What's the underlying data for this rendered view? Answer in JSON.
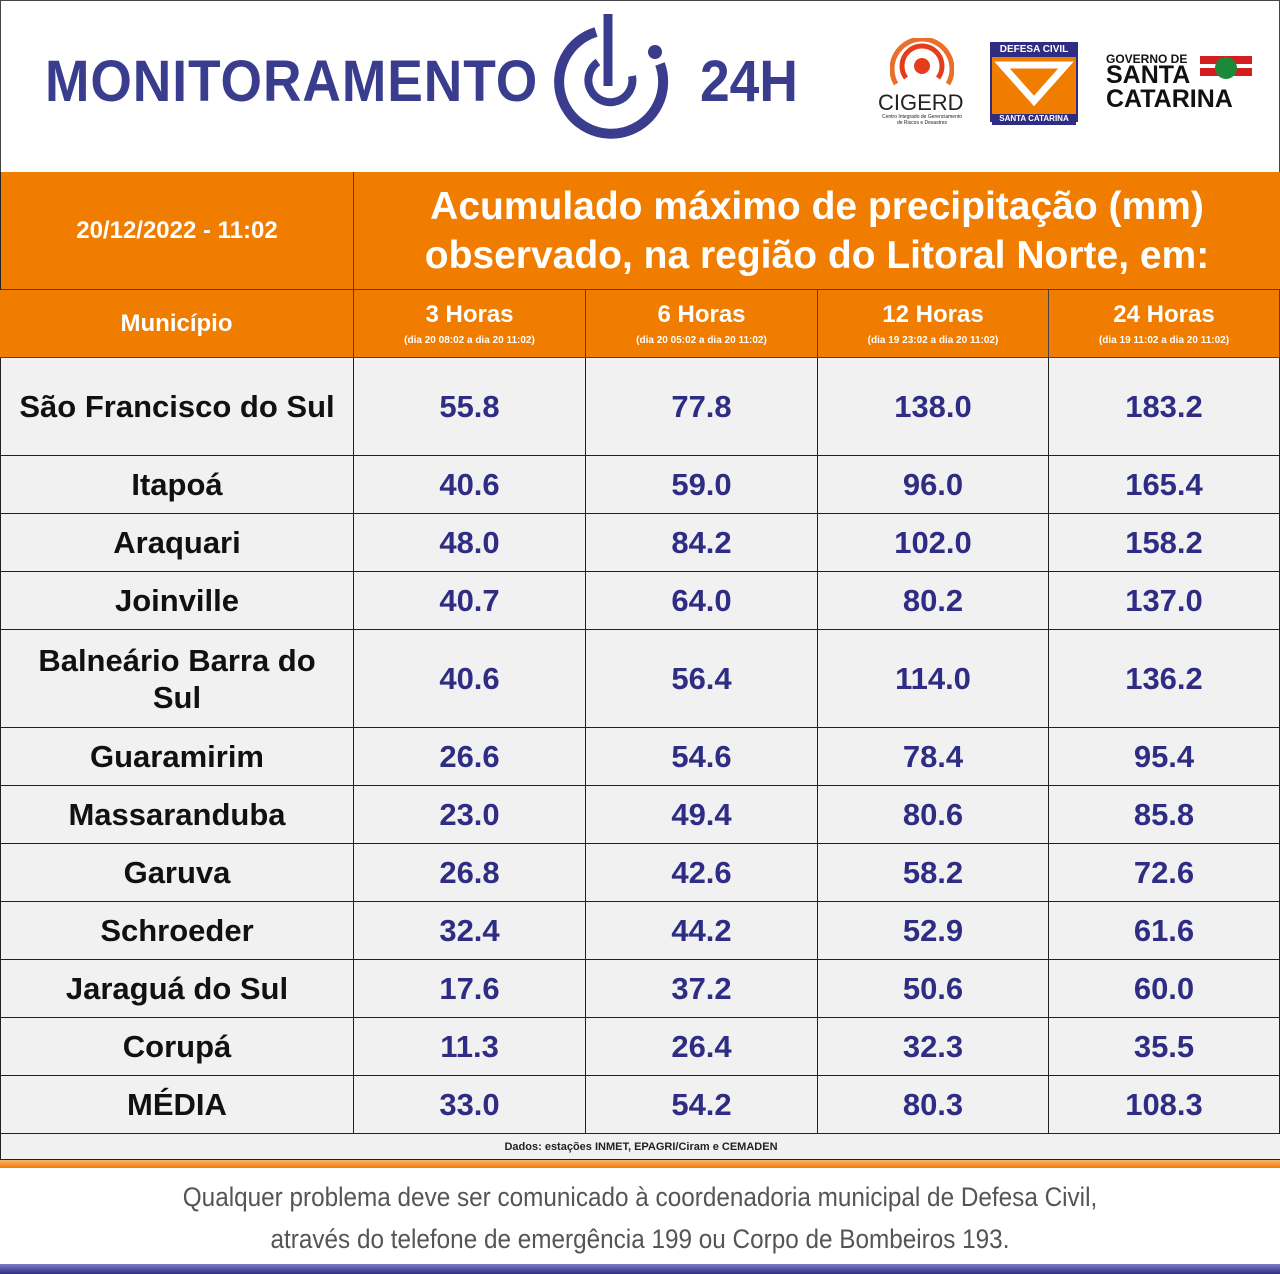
{
  "header": {
    "title": "MONITORAMENTO",
    "title_suffix": "24H",
    "cigerd": "CIGERD",
    "cigerd_sub": "Centro Integrado de Gerenciamento de Riscos e Desastres",
    "defesa_top": "DEFESA CIVIL",
    "defesa_bottom": "SANTA CATARINA",
    "gov_top": "GOVERNO DE",
    "gov_line1": "SANTA",
    "gov_line2": "CATARINA"
  },
  "table": {
    "datetime": "20/12/2022 - 11:02",
    "title_lines": [
      "Acumulado máximo de precipitação (mm)",
      "observado, na região do Litoral Norte, em:"
    ],
    "columns": [
      {
        "label": "Município"
      },
      {
        "label": "3 Horas",
        "sub": "(dia 20 08:02 a dia 20 11:02)"
      },
      {
        "label": "6 Horas",
        "sub": "(dia 20 05:02 a dia 20 11:02)"
      },
      {
        "label": "12 Horas",
        "sub": "(dia 19 23:02 a dia 20 11:02)"
      },
      {
        "label": "24 Horas",
        "sub": "(dia 19 11:02 a dia 20 11:02)"
      }
    ],
    "rows": [
      [
        "São Francisco do Sul",
        "55.8",
        "77.8",
        "138.0",
        "183.2"
      ],
      [
        "Itapoá",
        "40.6",
        "59.0",
        "96.0",
        "165.4"
      ],
      [
        "Araquari",
        "48.0",
        "84.2",
        "102.0",
        "158.2"
      ],
      [
        "Joinville",
        "40.7",
        "64.0",
        "80.2",
        "137.0"
      ],
      [
        "Balneário Barra do Sul",
        "40.6",
        "56.4",
        "114.0",
        "136.2"
      ],
      [
        "Guaramirim",
        "26.6",
        "54.6",
        "78.4",
        "95.4"
      ],
      [
        "Massaranduba",
        "23.0",
        "49.4",
        "80.6",
        "85.8"
      ],
      [
        "Garuva",
        "26.8",
        "42.6",
        "58.2",
        "72.6"
      ],
      [
        "Schroeder",
        "32.4",
        "44.2",
        "52.9",
        "61.6"
      ],
      [
        "Jaraguá do Sul",
        "17.6",
        "37.2",
        "50.6",
        "60.0"
      ],
      [
        "Corupá",
        "11.3",
        "26.4",
        "32.3",
        "35.5"
      ],
      [
        "MÉDIA",
        "33.0",
        "54.2",
        "80.3",
        "108.3"
      ]
    ],
    "source": "Dados: estações INMET, EPAGRI/Ciram e CEMADEN"
  },
  "footer": {
    "lines": [
      "Qualquer problema deve ser comunicado à coordenadoria municipal de Defesa Civil,",
      "através do telefone de emergência 199 ou Corpo de Bombeiros 193."
    ]
  }
}
